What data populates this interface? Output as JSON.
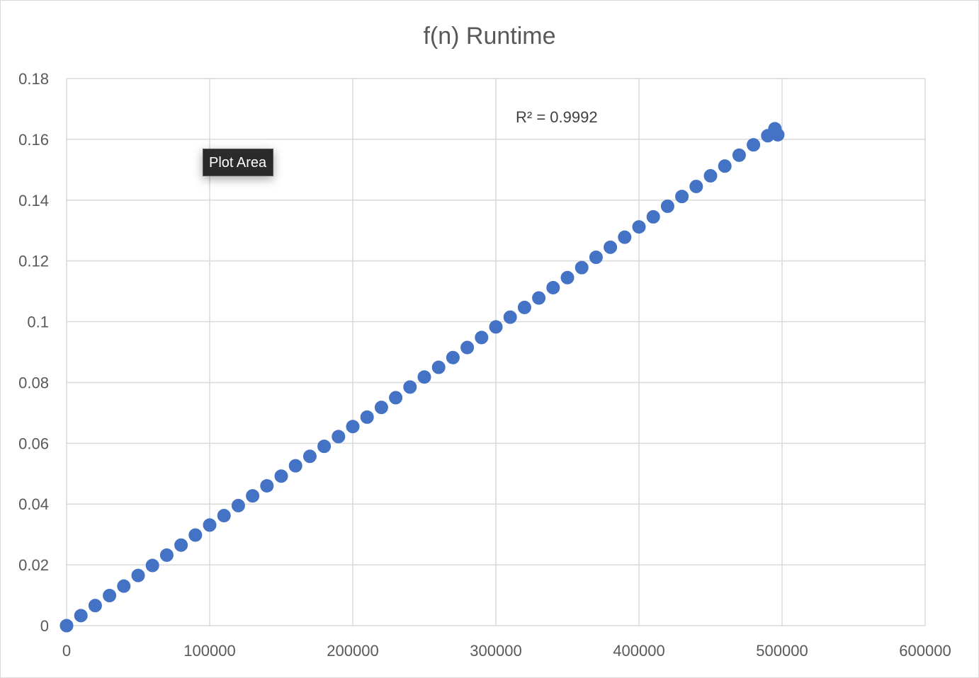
{
  "tooltip": {
    "label": "Plot Area"
  },
  "chart_data": {
    "type": "scatter",
    "title": "f(n) Runtime",
    "xlabel": "",
    "ylabel": "",
    "xlim": [
      0,
      600000
    ],
    "ylim": [
      0,
      0.18
    ],
    "x_ticks": [
      "0",
      "100000",
      "200000",
      "300000",
      "400000",
      "500000",
      "600000"
    ],
    "y_ticks": [
      "0",
      "0.02",
      "0.04",
      "0.06",
      "0.08",
      "0.1",
      "0.12",
      "0.14",
      "0.16",
      "0.18"
    ],
    "grid": true,
    "legend": "none",
    "annotation": "R² = 0.9992",
    "marker_color": "#4472c4",
    "series": [
      {
        "points": [
          [
            0,
            0.0
          ],
          [
            10000,
            0.0033
          ],
          [
            20000,
            0.0066
          ],
          [
            30000,
            0.0099
          ],
          [
            40000,
            0.013
          ],
          [
            50000,
            0.0165
          ],
          [
            60000,
            0.0198
          ],
          [
            70000,
            0.0232
          ],
          [
            80000,
            0.0265
          ],
          [
            90000,
            0.0298
          ],
          [
            100000,
            0.0331
          ],
          [
            110000,
            0.0362
          ],
          [
            120000,
            0.0395
          ],
          [
            130000,
            0.0427
          ],
          [
            140000,
            0.046
          ],
          [
            150000,
            0.0492
          ],
          [
            160000,
            0.0526
          ],
          [
            170000,
            0.0557
          ],
          [
            180000,
            0.059
          ],
          [
            190000,
            0.0622
          ],
          [
            200000,
            0.0655
          ],
          [
            210000,
            0.0686
          ],
          [
            220000,
            0.0718
          ],
          [
            230000,
            0.075
          ],
          [
            240000,
            0.0785
          ],
          [
            250000,
            0.0818
          ],
          [
            260000,
            0.085
          ],
          [
            270000,
            0.0882
          ],
          [
            280000,
            0.0915
          ],
          [
            290000,
            0.0948
          ],
          [
            300000,
            0.0983
          ],
          [
            310000,
            0.1015
          ],
          [
            320000,
            0.1047
          ],
          [
            330000,
            0.1078
          ],
          [
            340000,
            0.1112
          ],
          [
            350000,
            0.1145
          ],
          [
            360000,
            0.1178
          ],
          [
            370000,
            0.1212
          ],
          [
            380000,
            0.1245
          ],
          [
            390000,
            0.1278
          ],
          [
            400000,
            0.1312
          ],
          [
            410000,
            0.1345
          ],
          [
            420000,
            0.138
          ],
          [
            430000,
            0.1412
          ],
          [
            440000,
            0.1445
          ],
          [
            450000,
            0.148
          ],
          [
            460000,
            0.1512
          ],
          [
            470000,
            0.1548
          ],
          [
            480000,
            0.1582
          ],
          [
            490000,
            0.1612
          ],
          [
            495000,
            0.1635
          ],
          [
            497000,
            0.1615
          ]
        ]
      }
    ]
  }
}
